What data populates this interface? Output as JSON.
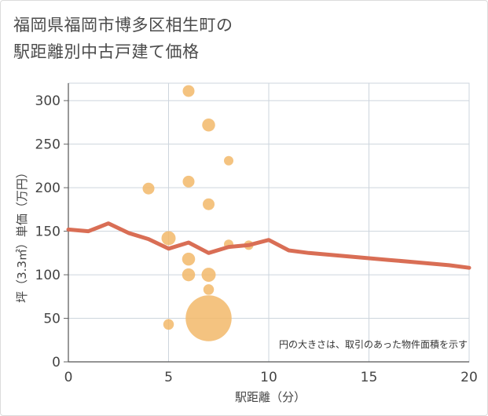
{
  "title_line1": "福岡県福岡市博多区相生町の",
  "title_line2": "駅距離別中古戸建て価格",
  "chart_data": {
    "type": "scatter",
    "xlabel": "駅距離（分）",
    "ylabel": "坪（3.3㎡）単価（万円）",
    "xlim": [
      0,
      20
    ],
    "ylim": [
      0,
      320
    ],
    "x_ticks": [
      0,
      5,
      10,
      15,
      20
    ],
    "y_ticks": [
      0,
      50,
      100,
      150,
      200,
      250,
      300
    ],
    "grid": true,
    "note": "円の大きさは、取引のあった物件面積を示す",
    "colors": {
      "points": "#f2b96a",
      "line": "#d96e55",
      "grid": "#cdd5dd"
    },
    "points": [
      {
        "x": 6,
        "y": 311,
        "size": 1
      },
      {
        "x": 7,
        "y": 272,
        "size": 1.1
      },
      {
        "x": 8,
        "y": 231,
        "size": 0.8
      },
      {
        "x": 6,
        "y": 207,
        "size": 1
      },
      {
        "x": 4,
        "y": 199,
        "size": 1
      },
      {
        "x": 7,
        "y": 181,
        "size": 1
      },
      {
        "x": 5,
        "y": 142,
        "size": 1.2
      },
      {
        "x": 8,
        "y": 135,
        "size": 0.8
      },
      {
        "x": 9,
        "y": 134,
        "size": 0.8
      },
      {
        "x": 6,
        "y": 118,
        "size": 1.1
      },
      {
        "x": 6,
        "y": 100,
        "size": 1.1
      },
      {
        "x": 7,
        "y": 100,
        "size": 1.2
      },
      {
        "x": 7,
        "y": 83,
        "size": 0.9
      },
      {
        "x": 7,
        "y": 50,
        "size": 3.9
      },
      {
        "x": 5,
        "y": 43,
        "size": 0.9
      }
    ],
    "trend": {
      "x": [
        0,
        1,
        2,
        3,
        4,
        5,
        6,
        7,
        8,
        9,
        10,
        11,
        12,
        13,
        14,
        15,
        16,
        17,
        18,
        19,
        20
      ],
      "y": [
        152,
        150,
        159,
        148,
        141,
        130,
        137,
        125,
        132,
        134,
        140,
        128,
        125,
        123,
        121,
        119,
        117,
        115,
        113,
        111,
        108
      ]
    }
  }
}
